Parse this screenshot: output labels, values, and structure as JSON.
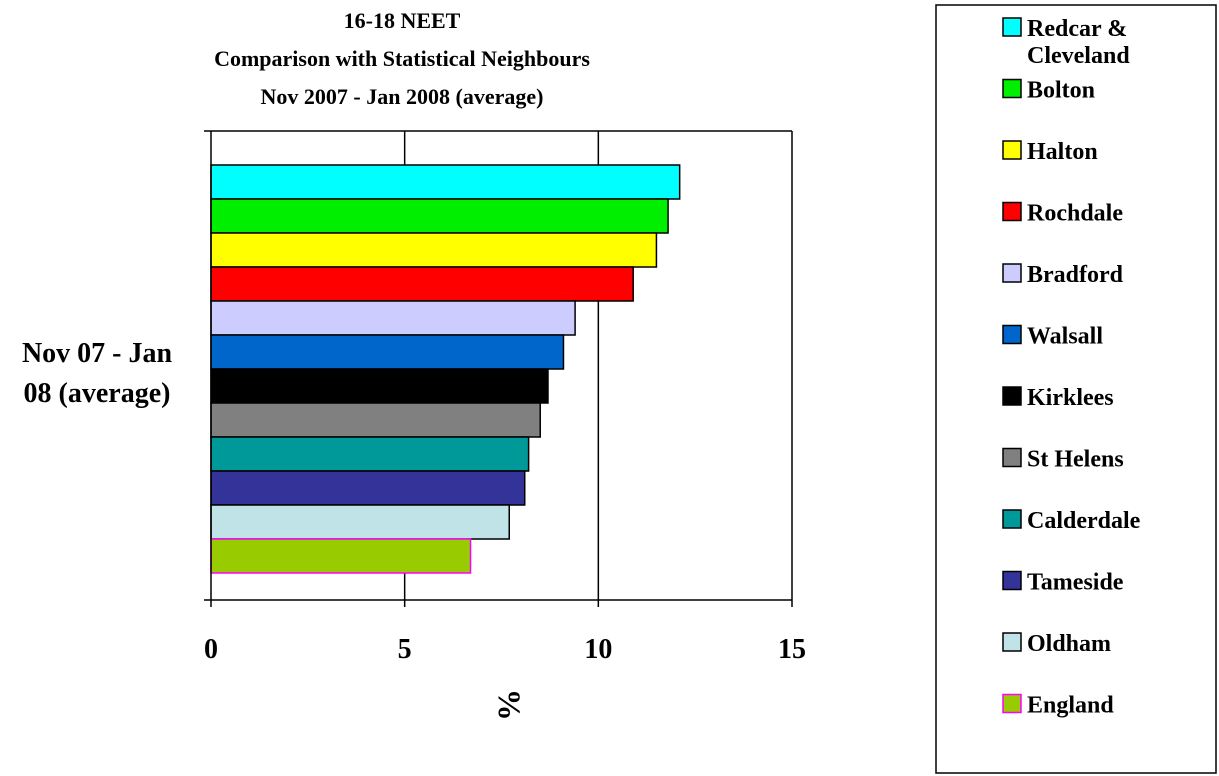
{
  "chart_data": {
    "type": "bar",
    "orientation": "horizontal",
    "title_lines": [
      "16-18 NEET",
      "Comparison with Statistical Neighbours",
      "Nov 2007 - Jan 2008 (average)"
    ],
    "category_label_lines": [
      "Nov 07 - Jan",
      "08 (average)"
    ],
    "xlabel": "%",
    "ylabel": "",
    "xlim": [
      0,
      15
    ],
    "xticks": [
      0,
      5,
      10,
      15
    ],
    "grid": "vertical major gridlines",
    "legend_position": "right",
    "series": [
      {
        "name": "Redcar & Cleveland",
        "value": 12.1,
        "color": "#00ffff",
        "legend_lines": [
          "Redcar &",
          "Cleveland"
        ]
      },
      {
        "name": "Bolton",
        "value": 11.8,
        "color": "#00ee00",
        "legend_lines": [
          "Bolton"
        ]
      },
      {
        "name": "Halton",
        "value": 11.5,
        "color": "#ffff00",
        "legend_lines": [
          "Halton"
        ]
      },
      {
        "name": "Rochdale",
        "value": 10.9,
        "color": "#ff0000",
        "legend_lines": [
          "Rochdale"
        ]
      },
      {
        "name": "Bradford",
        "value": 9.4,
        "color": "#ccccff",
        "legend_lines": [
          "Bradford"
        ]
      },
      {
        "name": "Walsall",
        "value": 9.1,
        "color": "#0066cc",
        "legend_lines": [
          "Walsall"
        ]
      },
      {
        "name": "Kirklees",
        "value": 8.7,
        "color": "#000000",
        "legend_lines": [
          "Kirklees"
        ]
      },
      {
        "name": "St Helens",
        "value": 8.5,
        "color": "#808080",
        "legend_lines": [
          "St Helens"
        ]
      },
      {
        "name": "Calderdale",
        "value": 8.2,
        "color": "#009999",
        "legend_lines": [
          "Calderdale"
        ]
      },
      {
        "name": "Tameside",
        "value": 8.1,
        "color": "#333399",
        "legend_lines": [
          "Tameside"
        ]
      },
      {
        "name": "Oldham",
        "value": 7.7,
        "color": "#bfe3e6",
        "legend_lines": [
          "Oldham"
        ]
      },
      {
        "name": "England",
        "value": 6.7,
        "color": "#99cc00",
        "border": "#ff00ff",
        "legend_lines": [
          "England"
        ]
      }
    ]
  }
}
